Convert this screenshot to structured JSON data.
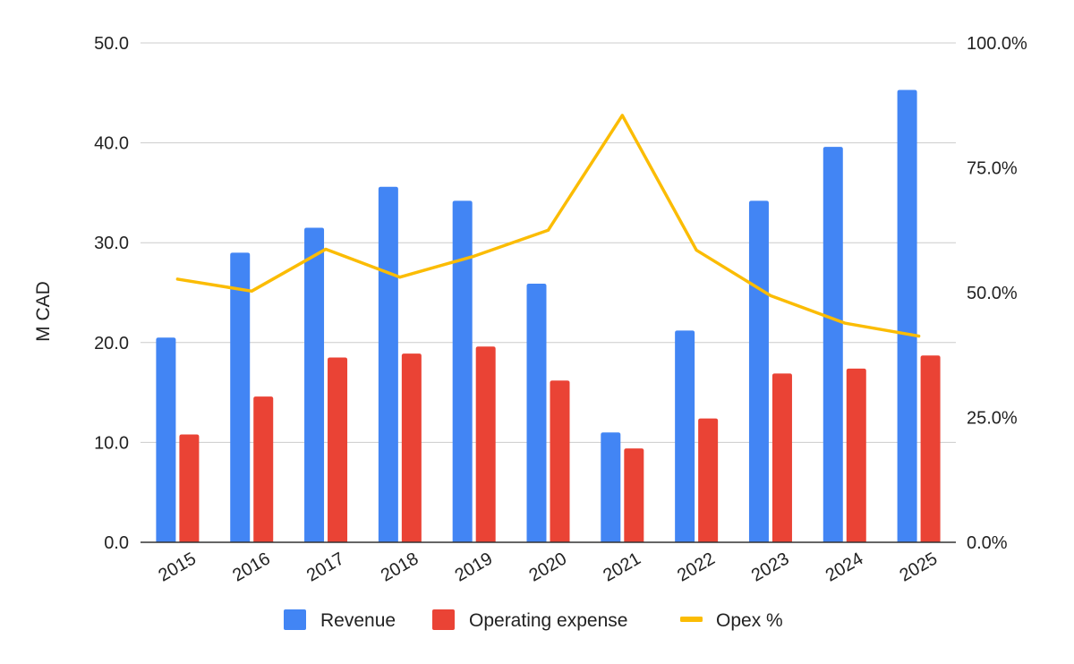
{
  "chart_data": {
    "type": "bar",
    "title": "",
    "xlabel": "",
    "ylabel": "M CAD",
    "ylim": [
      0,
      50
    ],
    "y2lim": [
      0,
      100
    ],
    "yticks": [
      "0.0",
      "10.0",
      "20.0",
      "30.0",
      "40.0",
      "50.0"
    ],
    "y2ticks": [
      "0.0%",
      "25.0%",
      "50.0%",
      "75.0%",
      "100.0%"
    ],
    "categories": [
      "2015",
      "2016",
      "2017",
      "2018",
      "2019",
      "2020",
      "2021",
      "2022",
      "2023",
      "2024",
      "2025"
    ],
    "series": [
      {
        "name": "Revenue",
        "type": "bar",
        "axis": "left",
        "color": "#4285F4",
        "values": [
          20.5,
          29.0,
          31.5,
          35.6,
          34.2,
          25.9,
          11.0,
          21.2,
          34.2,
          39.6,
          45.3
        ]
      },
      {
        "name": "Operating expense",
        "type": "bar",
        "axis": "left",
        "color": "#EA4335",
        "values": [
          10.8,
          14.6,
          18.5,
          18.9,
          19.6,
          16.2,
          9.4,
          12.4,
          16.9,
          17.4,
          18.7
        ]
      },
      {
        "name": "Opex %",
        "type": "line",
        "axis": "right",
        "color": "#FBBC04",
        "values": [
          52.7,
          50.3,
          58.7,
          53.1,
          57.3,
          62.5,
          85.5,
          58.5,
          49.4,
          43.9,
          41.3
        ]
      }
    ],
    "legend": [
      "Revenue",
      "Operating expense",
      "Opex %"
    ],
    "legend_position": "bottom",
    "grid": true
  }
}
